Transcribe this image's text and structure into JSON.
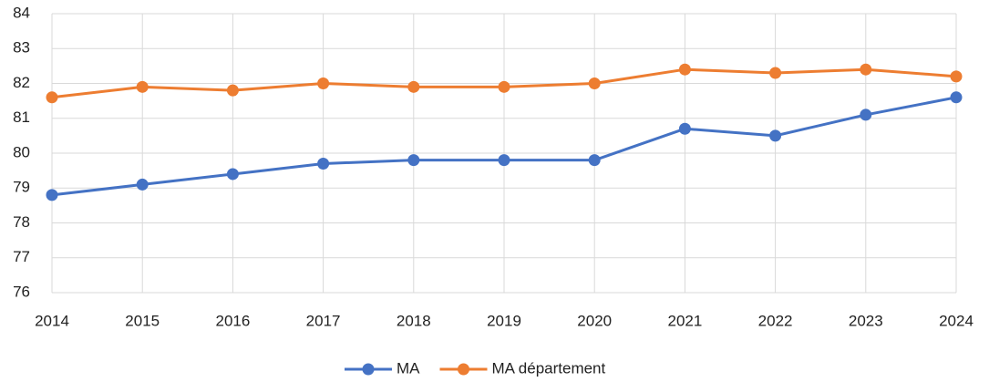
{
  "chart_data": {
    "type": "line",
    "x": [
      2014,
      2015,
      2016,
      2017,
      2018,
      2019,
      2020,
      2021,
      2022,
      2023,
      2024
    ],
    "xlim": [
      2014,
      2024
    ],
    "xticks": [
      2014,
      2015,
      2016,
      2017,
      2018,
      2019,
      2020,
      2021,
      2022,
      2023,
      2024
    ],
    "ylim": [
      76,
      84
    ],
    "yticks": [
      76,
      77,
      78,
      79,
      80,
      81,
      82,
      83,
      84
    ],
    "grid": true,
    "legend": "bottom",
    "series": [
      {
        "name": "MA",
        "color": "#4472c4",
        "values": [
          78.8,
          79.1,
          79.4,
          79.7,
          79.8,
          79.8,
          79.8,
          80.7,
          80.5,
          81.1,
          81.6
        ]
      },
      {
        "name": "MA département",
        "color": "#ed7d31",
        "values": [
          81.6,
          81.9,
          81.8,
          82.0,
          81.9,
          81.9,
          82.0,
          82.4,
          82.3,
          82.4,
          82.2
        ]
      }
    ]
  }
}
